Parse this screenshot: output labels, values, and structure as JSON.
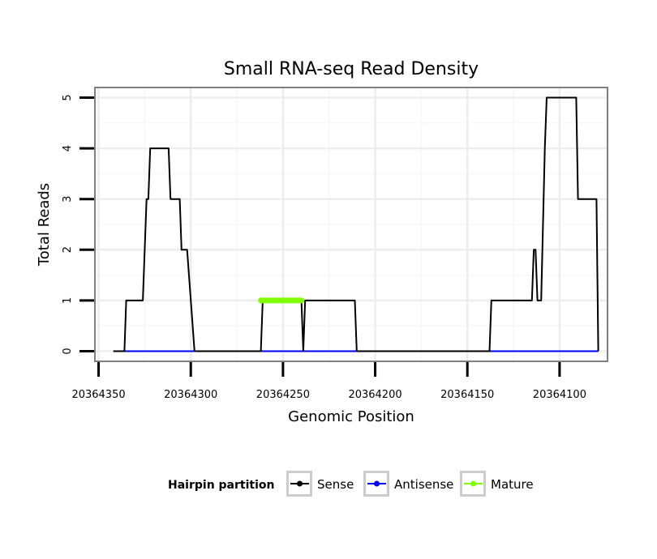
{
  "chart_data": {
    "type": "line",
    "title": "Small RNA-seq Read Density",
    "xlabel": "Genomic Position",
    "ylabel": "Total Reads",
    "x_reversed": true,
    "xlim": [
      20364352,
      20364074
    ],
    "ylim": [
      -0.2,
      5.2
    ],
    "x_ticks": [
      20364350,
      20364300,
      20364250,
      20364200,
      20364150,
      20364100
    ],
    "x_tick_labels": [
      "20364350",
      "20364300",
      "20364250",
      "20364200",
      "20364150",
      "20364100"
    ],
    "y_ticks": [
      0,
      1,
      2,
      3,
      4,
      5
    ],
    "y_tick_labels": [
      "0",
      "1",
      "2",
      "3",
      "4",
      "5"
    ],
    "grid": true,
    "legend": {
      "title": "Hairpin partition",
      "position": "bottom"
    },
    "series": [
      {
        "name": "Sense",
        "color": "#000000",
        "points": [
          [
            20364342,
            0
          ],
          [
            20364336,
            0
          ],
          [
            20364335,
            1
          ],
          [
            20364326,
            1
          ],
          [
            20364324,
            3
          ],
          [
            20364323,
            3
          ],
          [
            20364322,
            4
          ],
          [
            20364312,
            4
          ],
          [
            20364311,
            3
          ],
          [
            20364306,
            3
          ],
          [
            20364305,
            2
          ],
          [
            20364302,
            2
          ],
          [
            20364298,
            0
          ],
          [
            20364262,
            0
          ],
          [
            20364261,
            1
          ],
          [
            20364240,
            1
          ],
          [
            20364239,
            0
          ],
          [
            20364238,
            1
          ],
          [
            20364211,
            1
          ],
          [
            20364210,
            0
          ],
          [
            20364138,
            0
          ],
          [
            20364137,
            1
          ],
          [
            20364115,
            1
          ],
          [
            20364114,
            2
          ],
          [
            20364113,
            2
          ],
          [
            20364112,
            1
          ],
          [
            20364110,
            1
          ],
          [
            20364108,
            4
          ],
          [
            20364107,
            5
          ],
          [
            20364091,
            5
          ],
          [
            20364090,
            3
          ],
          [
            20364080,
            3
          ],
          [
            20364079,
            0
          ]
        ]
      },
      {
        "name": "Antisense",
        "color": "#0000ff",
        "points": [
          [
            20364336,
            0
          ],
          [
            20364079,
            0
          ]
        ]
      },
      {
        "name": "Mature",
        "color": "#80ff00",
        "points": [
          [
            20364262,
            1
          ],
          [
            20364240,
            1
          ]
        ]
      }
    ]
  }
}
